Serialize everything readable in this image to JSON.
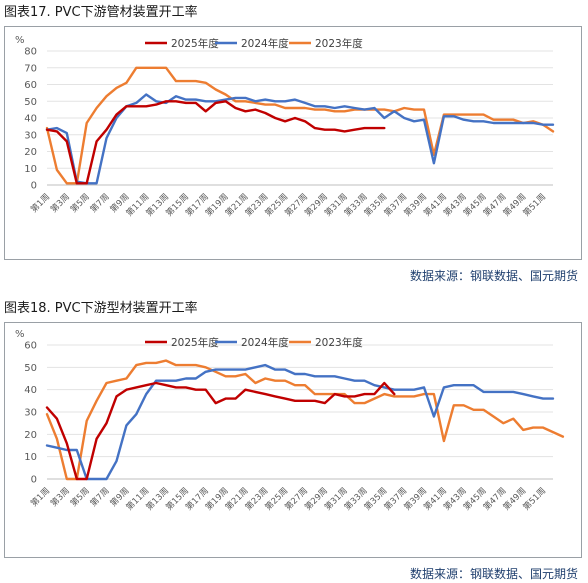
{
  "source": "数据来源：钢联数据、国元期货",
  "colors": {
    "2025年度": "#c00000",
    "2024年度": "#4472c4",
    "2023年度": "#ed7d31"
  },
  "chart_data": [
    {
      "figure_title": "图表17.  PVC下游管材装置开工率",
      "type": "line",
      "ylabel": "%",
      "ylim": [
        0,
        80
      ],
      "yticks": [
        0,
        10,
        20,
        30,
        40,
        50,
        60,
        70,
        80
      ],
      "xticks": [
        "第1周",
        "第3周",
        "第5周",
        "第7周",
        "第9周",
        "第11周",
        "第13周",
        "第15周",
        "第17周",
        "第19周",
        "第21周",
        "第23周",
        "第25周",
        "第27周",
        "第29周",
        "第31周",
        "第33周",
        "第35周",
        "第37周",
        "第39周",
        "第41周",
        "第43周",
        "第45周",
        "第47周",
        "第49周",
        "第51周"
      ],
      "grid": true,
      "legend": "top-center",
      "series": [
        {
          "name": "2025年度",
          "values": [
            33,
            32,
            26,
            1,
            1,
            26,
            33,
            42,
            47,
            47,
            47,
            48,
            50,
            50,
            49,
            49,
            44,
            49,
            50,
            46,
            44,
            45,
            43,
            40,
            38,
            40,
            38,
            34,
            33,
            33,
            32,
            33,
            34,
            34,
            34
          ]
        },
        {
          "name": "2024年度",
          "values": [
            33,
            34,
            31,
            2,
            1,
            1,
            28,
            40,
            47,
            49,
            54,
            50,
            49,
            53,
            51,
            51,
            50,
            50,
            51,
            52,
            52,
            50,
            51,
            50,
            50,
            51,
            49,
            47,
            47,
            46,
            47,
            46,
            45,
            46,
            40,
            44,
            40,
            38,
            39,
            13,
            41,
            41,
            39,
            38,
            38,
            37,
            37,
            37,
            37,
            37,
            36,
            36
          ]
        },
        {
          "name": "2023年度",
          "values": [
            34,
            9,
            1,
            1,
            37,
            46,
            53,
            58,
            61,
            70,
            70,
            70,
            70,
            62,
            62,
            62,
            61,
            57,
            54,
            50,
            50,
            49,
            48,
            48,
            46,
            46,
            46,
            45,
            45,
            44,
            44,
            45,
            45,
            45,
            45,
            44,
            46,
            45,
            45,
            18,
            42,
            42,
            42,
            42,
            42,
            39,
            39,
            39,
            37,
            38,
            36,
            32
          ]
        }
      ]
    },
    {
      "figure_title": "图表18.  PVC下游型材装置开工率",
      "type": "line",
      "ylabel": "%",
      "ylim": [
        0,
        60
      ],
      "yticks": [
        0,
        10,
        20,
        30,
        40,
        50,
        60
      ],
      "xticks": [
        "第1周",
        "第3周",
        "第5周",
        "第7周",
        "第9周",
        "第11周",
        "第13周",
        "第15周",
        "第17周",
        "第19周",
        "第21周",
        "第23周",
        "第25周",
        "第27周",
        "第29周",
        "第31周",
        "第33周",
        "第35周",
        "第37周",
        "第39周",
        "第41周",
        "第43周",
        "第45周",
        "第47周",
        "第49周",
        "第51周"
      ],
      "grid": true,
      "legend": "top-center",
      "series": [
        {
          "name": "2025年度",
          "values": [
            32,
            27,
            16,
            0,
            0,
            18,
            25,
            37,
            40,
            41,
            42,
            43,
            42,
            41,
            41,
            40,
            40,
            34,
            36,
            36,
            40,
            39,
            38,
            37,
            36,
            35,
            35,
            35,
            34,
            38,
            37,
            37,
            38,
            38,
            43,
            38
          ]
        },
        {
          "name": "2024年度",
          "values": [
            15,
            14,
            13,
            13,
            0,
            0,
            0,
            8,
            24,
            29,
            38,
            44,
            44,
            44,
            45,
            45,
            48,
            49,
            49,
            49,
            49,
            50,
            51,
            49,
            49,
            47,
            47,
            46,
            46,
            46,
            45,
            44,
            44,
            42,
            41,
            40,
            40,
            40,
            41,
            28,
            41,
            42,
            42,
            42,
            39,
            39,
            39,
            39,
            38,
            37,
            36,
            36
          ]
        },
        {
          "name": "2023年度",
          "values": [
            29,
            18,
            0,
            0,
            26,
            35,
            43,
            44,
            45,
            51,
            52,
            52,
            53,
            51,
            51,
            51,
            50,
            48,
            46,
            46,
            47,
            43,
            45,
            44,
            44,
            42,
            42,
            38,
            38,
            38,
            38,
            34,
            34,
            36,
            38,
            37,
            37,
            37,
            38,
            38,
            17,
            33,
            33,
            31,
            31,
            28,
            25,
            27,
            22,
            23,
            23,
            21,
            19
          ]
        }
      ]
    }
  ]
}
